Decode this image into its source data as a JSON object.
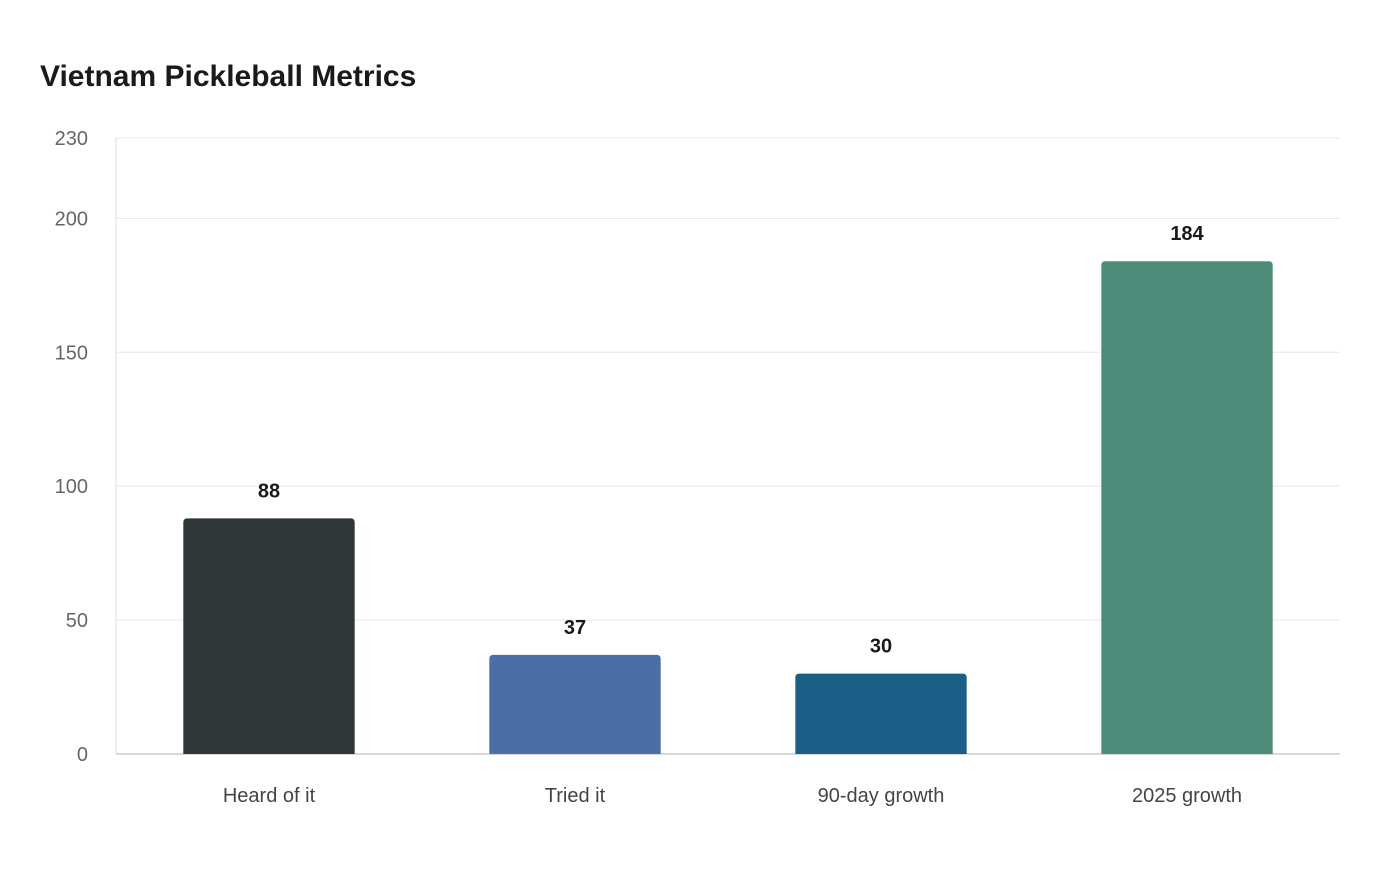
{
  "chart_data": {
    "type": "bar",
    "title": "Vietnam Pickleball Metrics",
    "categories": [
      "Heard of it",
      "Tried it",
      "90-day growth",
      "2025 growth"
    ],
    "values": [
      88,
      37,
      30,
      184
    ],
    "colors": [
      "#2e3638",
      "#4b6fa5",
      "#1a5f86",
      "#4e8c7a"
    ],
    "ylim": [
      0,
      230
    ],
    "yticks": [
      0,
      50,
      100,
      150,
      200,
      230
    ],
    "grid": true,
    "legend": "none"
  }
}
